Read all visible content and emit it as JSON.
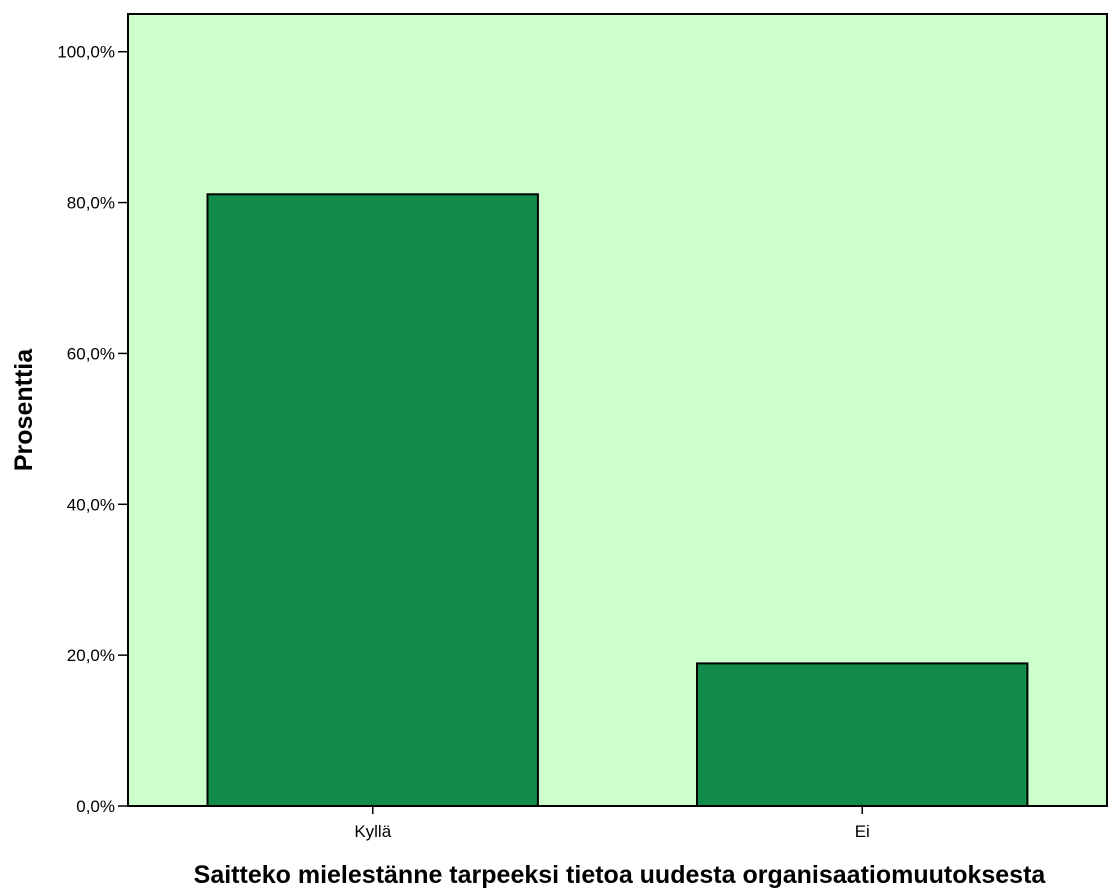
{
  "chart_data": {
    "type": "bar",
    "title": "",
    "xlabel": "Saitteko mielestänne tarpeeksi tietoa uudesta organisaatiomuutoksesta",
    "ylabel": "Prosenttia",
    "categories": [
      "Kyllä",
      "Ei"
    ],
    "values": [
      81.1,
      18.9
    ],
    "ylim": [
      0,
      105
    ],
    "yticks": [
      0,
      20,
      40,
      60,
      80,
      100
    ],
    "ytick_labels": [
      "0,0%",
      "20,0%",
      "40,0%",
      "60,0%",
      "80,0%",
      "100,0%"
    ],
    "grid": false,
    "legend": "none"
  },
  "colors": {
    "plot_background": "#ccffcc",
    "bar_fill": "#118c4a",
    "bar_stroke": "#000000",
    "axis": "#000000"
  }
}
